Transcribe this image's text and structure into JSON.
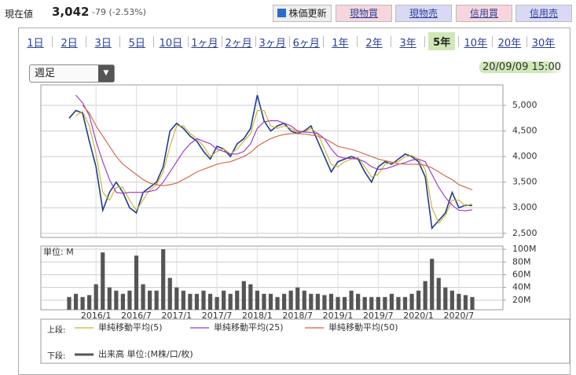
{
  "header": {
    "label": "現在値",
    "price": "3,042",
    "change": "-79 (-2.53%)",
    "buttons": [
      "株価更新",
      "現物買",
      "現物売",
      "信用買",
      "信用売"
    ]
  },
  "tabs": {
    "items": [
      "1日",
      "2日",
      "3日",
      "5日",
      "10日",
      "1ヶ月",
      "2ヶ月",
      "3ヶ月",
      "6ヶ月",
      "1年",
      "2年",
      "3年",
      "5年",
      "10年",
      "20年",
      "30年"
    ],
    "selected_index": 12
  },
  "period_select": "週足",
  "timestamp": "20/09/09 15:00",
  "legend": {
    "upper_label": "上段:",
    "lower_label": "下段:"
  },
  "chart_data": [
    {
      "type": "line",
      "grid": true,
      "x": [
        "2015/9",
        "2015/10",
        "2015/11",
        "2015/12",
        "2016/1",
        "2016/2",
        "2016/3",
        "2016/4",
        "2016/5",
        "2016/6",
        "2016/7",
        "2016/8",
        "2016/9",
        "2016/10",
        "2016/11",
        "2016/12",
        "2017/1",
        "2017/2",
        "2017/3",
        "2017/4",
        "2017/5",
        "2017/6",
        "2017/7",
        "2017/8",
        "2017/9",
        "2017/10",
        "2017/11",
        "2017/12",
        "2018/1",
        "2018/2",
        "2018/3",
        "2018/4",
        "2018/5",
        "2018/6",
        "2018/7",
        "2018/8",
        "2018/9",
        "2018/10",
        "2018/11",
        "2018/12",
        "2019/1",
        "2019/2",
        "2019/3",
        "2019/4",
        "2019/5",
        "2019/6",
        "2019/7",
        "2019/8",
        "2019/9",
        "2019/10",
        "2019/11",
        "2019/12",
        "2020/1",
        "2020/2",
        "2020/3",
        "2020/4",
        "2020/5",
        "2020/6",
        "2020/7",
        "2020/8",
        "2020/9"
      ],
      "ylim": [
        2420,
        5400
      ],
      "yticks": [
        {
          "value": 2500,
          "label": "2,500"
        },
        {
          "value": 3000,
          "label": "3,000"
        },
        {
          "value": 3500,
          "label": "3,500"
        },
        {
          "value": 4000,
          "label": "4,000"
        },
        {
          "value": 4500,
          "label": "4,500"
        },
        {
          "value": 5000,
          "label": "5,000"
        }
      ],
      "series": [
        {
          "color": "#1f3d8f",
          "values": [
            4750,
            4900,
            4850,
            4300,
            3800,
            2950,
            3300,
            3500,
            3300,
            3000,
            2900,
            3300,
            3400,
            3500,
            3800,
            4500,
            4650,
            4550,
            4400,
            4300,
            4100,
            3950,
            4200,
            4150,
            4000,
            4250,
            4350,
            4550,
            5200,
            4700,
            4500,
            4600,
            4650,
            4500,
            4450,
            4500,
            4600,
            4300,
            4000,
            3700,
            3900,
            3950,
            4000,
            3950,
            3700,
            3500,
            3800,
            3900,
            3850,
            3950,
            4050,
            4000,
            3900,
            3600,
            2600,
            2750,
            2900,
            3300,
            3000,
            3050,
            3042
          ]
        },
        {
          "name": "単純移動平均(5)",
          "color": "#c9b420",
          "values": [
            null,
            4800,
            4880,
            4600,
            4050,
            3300,
            3150,
            3400,
            3400,
            3150,
            2950,
            3150,
            3350,
            3450,
            3700,
            4200,
            4600,
            4600,
            4450,
            4350,
            4200,
            4000,
            4100,
            4150,
            4050,
            4150,
            4300,
            4450,
            4900,
            4900,
            4600,
            4550,
            4600,
            4550,
            4480,
            4480,
            4550,
            4450,
            4150,
            3850,
            3800,
            3900,
            3950,
            3980,
            3800,
            3600,
            3650,
            3850,
            3880,
            3900,
            4000,
            4020,
            3950,
            3750,
            3000,
            2700,
            2850,
            3150,
            3150,
            3030,
            3080
          ]
        },
        {
          "name": "単純移動平均(25)",
          "color": "#9b30c8",
          "values": [
            null,
            5200,
            5050,
            4800,
            4300,
            3900,
            3550,
            3300,
            3280,
            3300,
            3300,
            3300,
            3320,
            3350,
            3500,
            3700,
            3900,
            4100,
            4250,
            4350,
            4300,
            4250,
            4150,
            4100,
            4050,
            4050,
            4100,
            4250,
            4550,
            4680,
            4700,
            4700,
            4650,
            4600,
            4500,
            4480,
            4470,
            4450,
            4350,
            4150,
            4000,
            3970,
            3960,
            3950,
            3900,
            3800,
            3750,
            3760,
            3800,
            3850,
            3880,
            3930,
            3950,
            3900,
            3650,
            3400,
            3200,
            3050,
            2950,
            2940,
            2960
          ]
        },
        {
          "name": "単純移動平均(50)",
          "color": "#d0603a",
          "values": [
            null,
            null,
            5000,
            4850,
            4600,
            4400,
            4200,
            4000,
            3850,
            3750,
            3650,
            3550,
            3480,
            3450,
            3430,
            3450,
            3480,
            3550,
            3620,
            3700,
            3750,
            3800,
            3850,
            3880,
            3900,
            3950,
            4000,
            4080,
            4200,
            4280,
            4350,
            4400,
            4430,
            4450,
            4450,
            4440,
            4420,
            4400,
            4350,
            4280,
            4200,
            4170,
            4140,
            4100,
            4050,
            4000,
            3950,
            3920,
            3890,
            3860,
            3850,
            3850,
            3850,
            3830,
            3780,
            3700,
            3620,
            3550,
            3450,
            3400,
            3350
          ]
        }
      ]
    },
    {
      "type": "bar",
      "ylabel": "単位: M",
      "grid": true,
      "x": [
        "2015/9",
        "2015/10",
        "2015/11",
        "2015/12",
        "2016/1",
        "2016/2",
        "2016/3",
        "2016/4",
        "2016/5",
        "2016/6",
        "2016/7",
        "2016/8",
        "2016/9",
        "2016/10",
        "2016/11",
        "2016/12",
        "2017/1",
        "2017/2",
        "2017/3",
        "2017/4",
        "2017/5",
        "2017/6",
        "2017/7",
        "2017/8",
        "2017/9",
        "2017/10",
        "2017/11",
        "2017/12",
        "2018/1",
        "2018/2",
        "2018/3",
        "2018/4",
        "2018/5",
        "2018/6",
        "2018/7",
        "2018/8",
        "2018/9",
        "2018/10",
        "2018/11",
        "2018/12",
        "2019/1",
        "2019/2",
        "2019/3",
        "2019/4",
        "2019/5",
        "2019/6",
        "2019/7",
        "2019/8",
        "2019/9",
        "2019/10",
        "2019/11",
        "2019/12",
        "2020/1",
        "2020/2",
        "2020/3",
        "2020/4",
        "2020/5",
        "2020/6",
        "2020/7",
        "2020/8",
        "2020/9"
      ],
      "xticks": [
        "2016/1",
        "2016/7",
        "2017/1",
        "2017/7",
        "2018/1",
        "2018/7",
        "2019/1",
        "2019/7",
        "2020/1",
        "2020/7"
      ],
      "ylim": [
        5,
        105
      ],
      "yticks": [
        {
          "value": 20,
          "label": "20M"
        },
        {
          "value": 40,
          "label": "40M"
        },
        {
          "value": 60,
          "label": "60M"
        },
        {
          "value": 80,
          "label": "80M"
        },
        {
          "value": 100,
          "label": "100M"
        }
      ],
      "series": [
        {
          "name": "出来高 単位:(M株/口/枚)",
          "color": "#555555",
          "values": [
            25,
            30,
            25,
            28,
            45,
            95,
            40,
            35,
            30,
            35,
            90,
            45,
            35,
            35,
            100,
            55,
            40,
            35,
            30,
            30,
            35,
            30,
            25,
            35,
            30,
            35,
            50,
            45,
            35,
            30,
            30,
            25,
            30,
            35,
            40,
            35,
            30,
            30,
            28,
            30,
            25,
            25,
            35,
            30,
            25,
            25,
            25,
            25,
            30,
            25,
            25,
            30,
            35,
            50,
            85,
            55,
            40,
            35,
            30,
            28,
            25
          ]
        }
      ]
    }
  ]
}
